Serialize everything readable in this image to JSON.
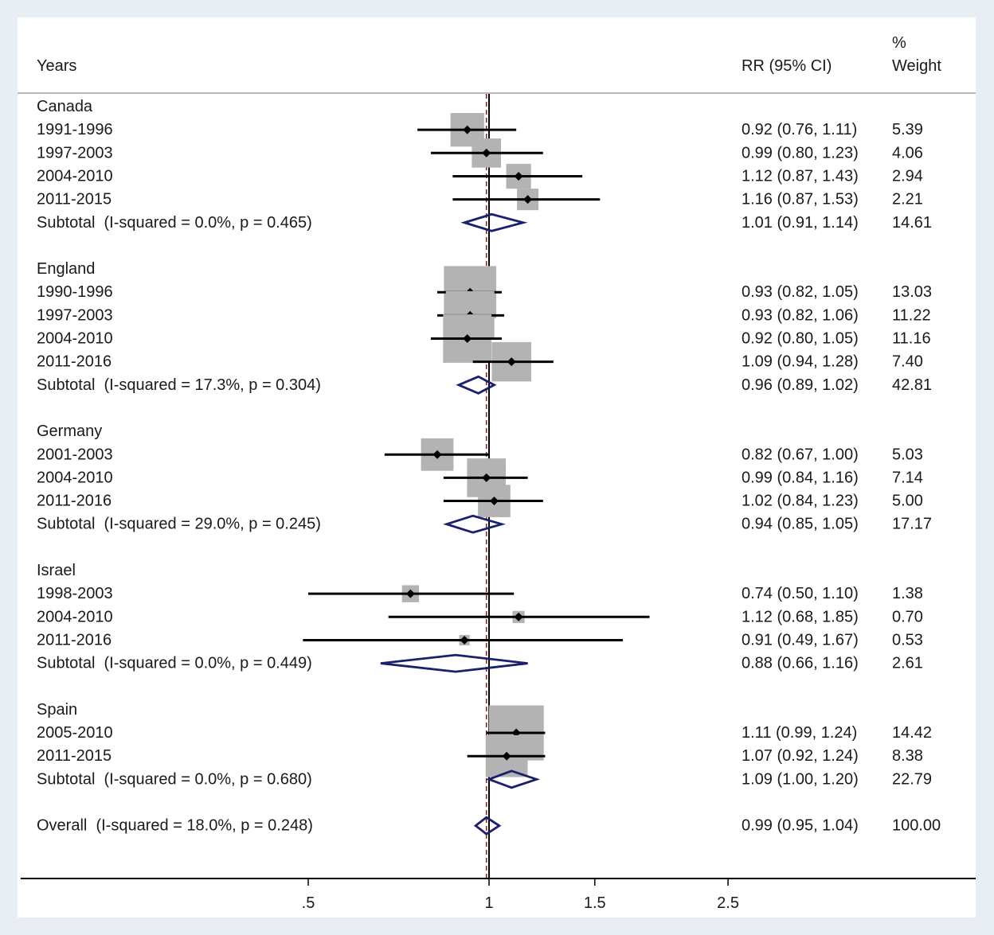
{
  "chart_data": {
    "type": "forest",
    "columns": {
      "label": "Years",
      "effect": "RR (95% CI)",
      "weight_line1": "%",
      "weight_line2": "Weight"
    },
    "x_axis": {
      "scale": "log",
      "ticks": [
        0.5,
        1,
        1.5,
        2.5
      ],
      "tick_labels": [
        ".5",
        "1",
        "1.5",
        "2.5"
      ],
      "reference_line": 1,
      "overall_line": 0.99
    },
    "colors": {
      "box": "#b3b3b3",
      "ci": "#000000",
      "diamond": "#1a1f6e",
      "overall_line": "#8b1c1c"
    },
    "rows": [
      {
        "kind": "group",
        "label": "Canada"
      },
      {
        "kind": "study",
        "label": "1991-1996",
        "rr": 0.92,
        "lo": 0.76,
        "hi": 1.11,
        "text": "0.92 (0.76, 1.11)",
        "weight": 5.39,
        "weight_text": "5.39"
      },
      {
        "kind": "study",
        "label": "1997-2003",
        "rr": 0.99,
        "lo": 0.8,
        "hi": 1.23,
        "text": "0.99 (0.80, 1.23)",
        "weight": 4.06,
        "weight_text": "4.06"
      },
      {
        "kind": "study",
        "label": "2004-2010",
        "rr": 1.12,
        "lo": 0.87,
        "hi": 1.43,
        "text": "1.12 (0.87, 1.43)",
        "weight": 2.94,
        "weight_text": "2.94"
      },
      {
        "kind": "study",
        "label": "2011-2015",
        "rr": 1.16,
        "lo": 0.87,
        "hi": 1.53,
        "text": "1.16 (0.87, 1.53)",
        "weight": 2.21,
        "weight_text": "2.21"
      },
      {
        "kind": "subtotal",
        "label": "Subtotal  (I-squared = 0.0%, p = 0.465)",
        "rr": 1.01,
        "lo": 0.91,
        "hi": 1.14,
        "text": "1.01 (0.91, 1.14)",
        "weight_text": "14.61"
      },
      {
        "kind": "blank"
      },
      {
        "kind": "group",
        "label": "England"
      },
      {
        "kind": "study",
        "label": "1990-1996",
        "rr": 0.93,
        "lo": 0.82,
        "hi": 1.05,
        "text": "0.93 (0.82, 1.05)",
        "weight": 13.03,
        "weight_text": "13.03"
      },
      {
        "kind": "study",
        "label": "1997-2003",
        "rr": 0.93,
        "lo": 0.82,
        "hi": 1.06,
        "text": "0.93 (0.82, 1.06)",
        "weight": 11.22,
        "weight_text": "11.22"
      },
      {
        "kind": "study",
        "label": "2004-2010",
        "rr": 0.92,
        "lo": 0.8,
        "hi": 1.05,
        "text": "0.92 (0.80, 1.05)",
        "weight": 11.16,
        "weight_text": "11.16"
      },
      {
        "kind": "study",
        "label": "2011-2016",
        "rr": 1.09,
        "lo": 0.94,
        "hi": 1.28,
        "text": "1.09 (0.94, 1.28)",
        "weight": 7.4,
        "weight_text": "7.40"
      },
      {
        "kind": "subtotal",
        "label": "Subtotal  (I-squared = 17.3%, p = 0.304)",
        "rr": 0.96,
        "lo": 0.89,
        "hi": 1.02,
        "text": "0.96 (0.89, 1.02)",
        "weight_text": "42.81"
      },
      {
        "kind": "blank"
      },
      {
        "kind": "group",
        "label": "Germany"
      },
      {
        "kind": "study",
        "label": "2001-2003",
        "rr": 0.82,
        "lo": 0.67,
        "hi": 1.0,
        "text": "0.82 (0.67, 1.00)",
        "weight": 5.03,
        "weight_text": "5.03"
      },
      {
        "kind": "study",
        "label": "2004-2010",
        "rr": 0.99,
        "lo": 0.84,
        "hi": 1.16,
        "text": "0.99 (0.84, 1.16)",
        "weight": 7.14,
        "weight_text": "7.14"
      },
      {
        "kind": "study",
        "label": "2011-2016",
        "rr": 1.02,
        "lo": 0.84,
        "hi": 1.23,
        "text": "1.02 (0.84, 1.23)",
        "weight": 5.0,
        "weight_text": "5.00"
      },
      {
        "kind": "subtotal",
        "label": "Subtotal  (I-squared = 29.0%, p = 0.245)",
        "rr": 0.94,
        "lo": 0.85,
        "hi": 1.05,
        "text": "0.94 (0.85, 1.05)",
        "weight_text": "17.17"
      },
      {
        "kind": "blank"
      },
      {
        "kind": "group",
        "label": "Israel"
      },
      {
        "kind": "study",
        "label": "1998-2003",
        "rr": 0.74,
        "lo": 0.5,
        "hi": 1.1,
        "text": "0.74 (0.50, 1.10)",
        "weight": 1.38,
        "weight_text": "1.38"
      },
      {
        "kind": "study",
        "label": "2004-2010",
        "rr": 1.12,
        "lo": 0.68,
        "hi": 1.85,
        "text": "1.12 (0.68, 1.85)",
        "weight": 0.7,
        "weight_text": "0.70"
      },
      {
        "kind": "study",
        "label": "2011-2016",
        "rr": 0.91,
        "lo": 0.49,
        "hi": 1.67,
        "text": "0.91 (0.49, 1.67)",
        "weight": 0.53,
        "weight_text": "0.53"
      },
      {
        "kind": "subtotal",
        "label": "Subtotal  (I-squared = 0.0%, p = 0.449)",
        "rr": 0.88,
        "lo": 0.66,
        "hi": 1.16,
        "text": "0.88 (0.66, 1.16)",
        "weight_text": "2.61"
      },
      {
        "kind": "blank"
      },
      {
        "kind": "group",
        "label": "Spain"
      },
      {
        "kind": "study",
        "label": "2005-2010",
        "rr": 1.11,
        "lo": 0.99,
        "hi": 1.24,
        "text": "1.11 (0.99, 1.24)",
        "weight": 14.42,
        "weight_text": "14.42"
      },
      {
        "kind": "study",
        "label": "2011-2015",
        "rr": 1.07,
        "lo": 0.92,
        "hi": 1.24,
        "text": "1.07 (0.92, 1.24)",
        "weight": 8.38,
        "weight_text": "8.38"
      },
      {
        "kind": "subtotal",
        "label": "Subtotal  (I-squared = 0.0%, p = 0.680)",
        "rr": 1.09,
        "lo": 1.0,
        "hi": 1.2,
        "text": "1.09 (1.00, 1.20)",
        "weight_text": "22.79"
      },
      {
        "kind": "blank"
      },
      {
        "kind": "overall",
        "label": "Overall  (I-squared = 18.0%, p = 0.248)",
        "rr": 0.99,
        "lo": 0.95,
        "hi": 1.04,
        "text": "0.99 (0.95, 1.04)",
        "weight_text": "100.00"
      }
    ]
  }
}
